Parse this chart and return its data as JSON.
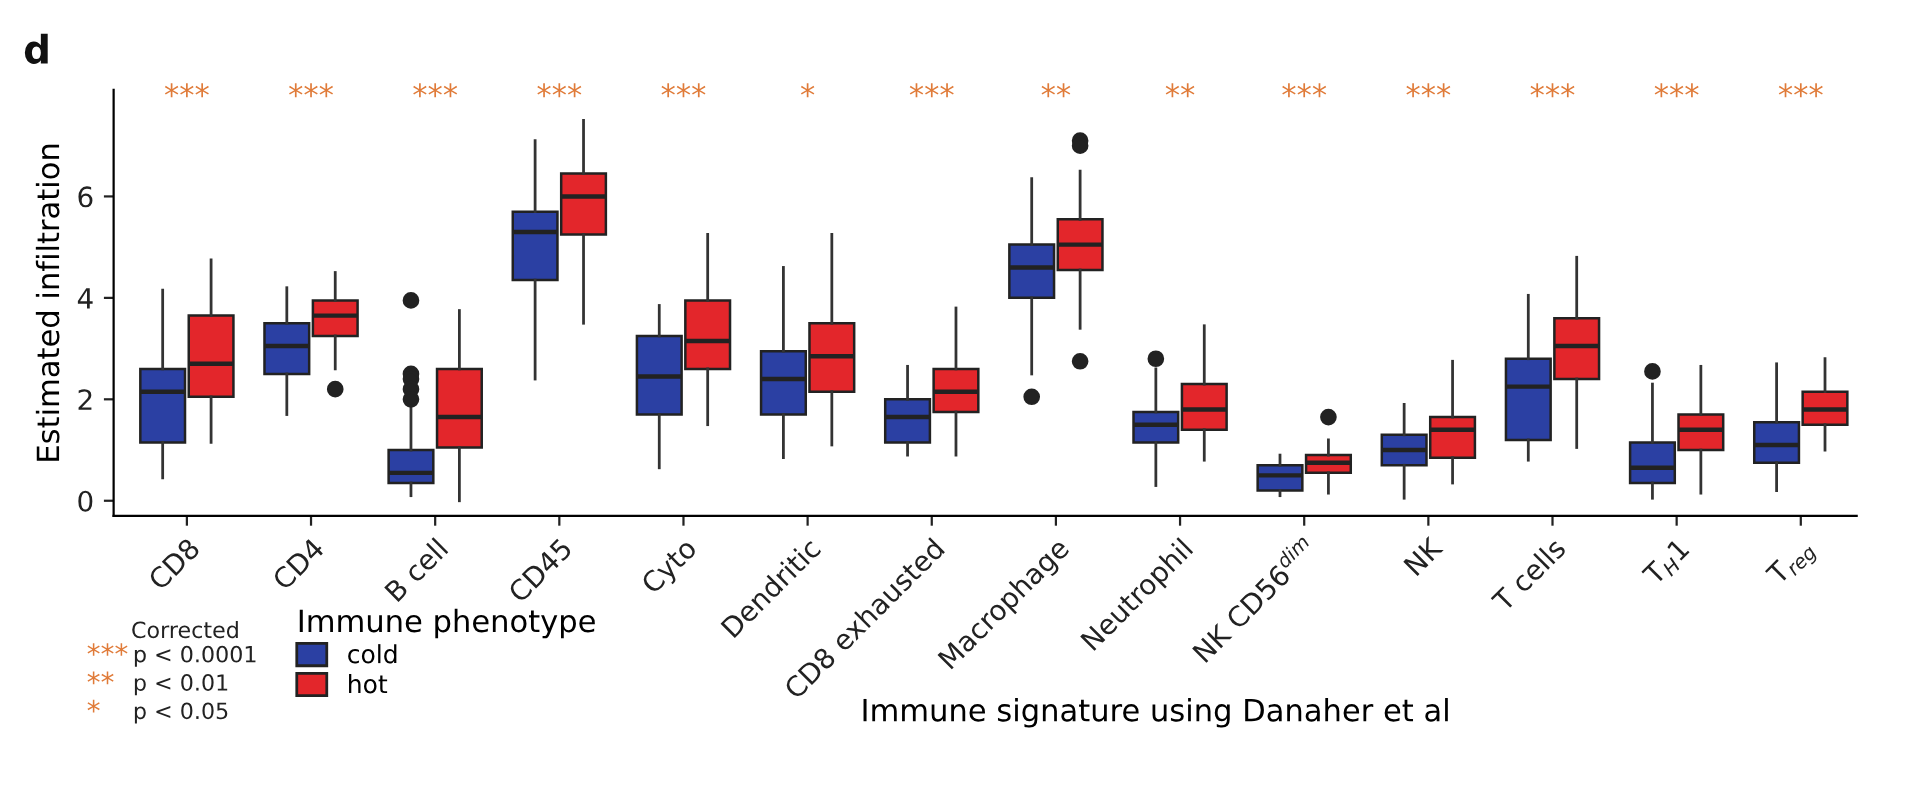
{
  "chart_data": {
    "type": "box",
    "ylabel": "Estimated infiltration",
    "xlabel": "Immune signature using Danaher et al",
    "legend_title": "Immune phenotype",
    "legend": "bottom left",
    "grid": false,
    "categories": [
      "CD8",
      "CD4",
      "B cell",
      "CD45",
      "Cyto",
      "Dendritic",
      "CD8 exhausted",
      "Macrophage",
      "Neutrophil",
      "NK CD56$^{dim}$",
      "NK",
      "T cells",
      "T$_{H}$1",
      "T$_{reg}$"
    ],
    "ylim": [
      -0.3,
      8.1
    ],
    "yticks": [
      0,
      2,
      4,
      6
    ],
    "series": [
      {
        "name": "cold",
        "color": "#2b40a3",
        "boxes": [
          {
            "low": 0.45,
            "q1": 1.15,
            "median": 2.15,
            "q3": 2.6,
            "high": 4.15
          },
          {
            "low": 1.7,
            "q1": 2.5,
            "median": 3.05,
            "q3": 3.5,
            "high": 4.2
          },
          {
            "low": 0.1,
            "q1": 0.35,
            "median": 0.55,
            "q3": 1.0,
            "high": 1.85,
            "outliers": [
              3.95,
              2.5,
              2.4,
              2.2,
              2.0
            ]
          },
          {
            "low": 2.4,
            "q1": 4.35,
            "median": 5.3,
            "q3": 5.7,
            "high": 7.1
          },
          {
            "low": 0.65,
            "q1": 1.7,
            "median": 2.45,
            "q3": 3.25,
            "high": 3.85
          },
          {
            "low": 0.85,
            "q1": 1.7,
            "median": 2.4,
            "q3": 2.95,
            "high": 4.6
          },
          {
            "low": 0.9,
            "q1": 1.15,
            "median": 1.65,
            "q3": 2.0,
            "high": 2.65
          },
          {
            "low": 2.5,
            "q1": 4.0,
            "median": 4.6,
            "q3": 5.05,
            "high": 6.35,
            "outliers": [
              2.05
            ]
          },
          {
            "low": 0.3,
            "q1": 1.15,
            "median": 1.5,
            "q3": 1.75,
            "high": 2.6,
            "outliers": [
              2.8
            ]
          },
          {
            "low": 0.1,
            "q1": 0.2,
            "median": 0.5,
            "q3": 0.7,
            "high": 0.9
          },
          {
            "low": 0.05,
            "q1": 0.7,
            "median": 1.0,
            "q3": 1.3,
            "high": 1.9
          },
          {
            "low": 0.8,
            "q1": 1.2,
            "median": 2.25,
            "q3": 2.8,
            "high": 4.05
          },
          {
            "low": 0.05,
            "q1": 0.35,
            "median": 0.65,
            "q3": 1.15,
            "high": 2.3,
            "outliers": [
              2.55
            ]
          },
          {
            "low": 0.2,
            "q1": 0.75,
            "median": 1.1,
            "q3": 1.55,
            "high": 2.7
          }
        ]
      },
      {
        "name": "hot",
        "color": "#e3262b",
        "boxes": [
          {
            "low": 1.15,
            "q1": 2.05,
            "median": 2.7,
            "q3": 3.65,
            "high": 4.75
          },
          {
            "low": 2.6,
            "q1": 3.25,
            "median": 3.65,
            "q3": 3.95,
            "high": 4.5,
            "outliers": [
              2.2
            ]
          },
          {
            "low": 0.0,
            "q1": 1.05,
            "median": 1.65,
            "q3": 2.6,
            "high": 3.75
          },
          {
            "low": 3.5,
            "q1": 5.25,
            "median": 6.0,
            "q3": 6.45,
            "high": 7.5
          },
          {
            "low": 1.5,
            "q1": 2.6,
            "median": 3.15,
            "q3": 3.95,
            "high": 5.25
          },
          {
            "low": 1.1,
            "q1": 2.15,
            "median": 2.85,
            "q3": 3.5,
            "high": 5.25
          },
          {
            "low": 0.9,
            "q1": 1.75,
            "median": 2.15,
            "q3": 2.6,
            "high": 3.8
          },
          {
            "low": 3.4,
            "q1": 4.55,
            "median": 5.05,
            "q3": 5.55,
            "high": 6.5,
            "outliers": [
              7.1,
              7.0,
              2.75
            ]
          },
          {
            "low": 0.8,
            "q1": 1.4,
            "median": 1.8,
            "q3": 2.3,
            "high": 3.45
          },
          {
            "low": 0.15,
            "q1": 0.55,
            "median": 0.75,
            "q3": 0.9,
            "high": 1.2,
            "outliers": [
              1.65
            ]
          },
          {
            "low": 0.35,
            "q1": 0.85,
            "median": 1.4,
            "q3": 1.65,
            "high": 2.75
          },
          {
            "low": 1.05,
            "q1": 2.4,
            "median": 3.05,
            "q3": 3.6,
            "high": 4.8
          },
          {
            "low": 0.15,
            "q1": 1.0,
            "median": 1.4,
            "q3": 1.7,
            "high": 2.65
          },
          {
            "low": 1.0,
            "q1": 1.5,
            "median": 1.8,
            "q3": 2.15,
            "high": 2.8
          }
        ]
      }
    ],
    "annotations": [
      "d",
      "Corrected",
      "***",
      "p < 0.0001",
      "**",
      "p < 0.01",
      "*",
      "p < 0.05",
      "***",
      "***",
      "***",
      "***",
      "***",
      "*",
      "***",
      "**",
      "**",
      "***",
      "***",
      "***",
      "***",
      "***"
    ]
  }
}
